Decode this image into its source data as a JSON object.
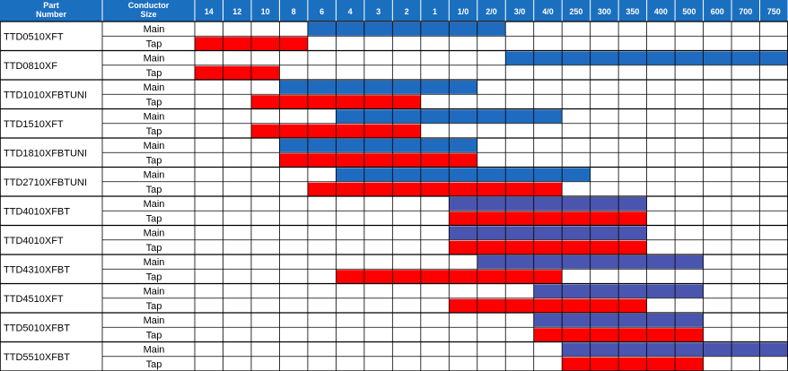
{
  "chart_data": {
    "type": "bar",
    "title": "",
    "header": {
      "part_label": "Part\nNumber",
      "size_label": "Conductor\nSize"
    },
    "sizes": [
      "14",
      "12",
      "10",
      "8",
      "6",
      "4",
      "3",
      "2",
      "1",
      "1/0",
      "2/0",
      "3/0",
      "4/0",
      "250",
      "300",
      "350",
      "400",
      "500",
      "600",
      "700",
      "750"
    ],
    "colors": {
      "header_bg": "#1b6fbf",
      "main": "#1f6bbf",
      "main_purple": "#4a55b0",
      "tap": "#ff0000",
      "grid": "#000000"
    },
    "parts": [
      {
        "part": "TTD0510XFT",
        "main": [
          "6",
          "2/0"
        ],
        "tap": [
          "14",
          "8"
        ]
      },
      {
        "part": "TTD0810XF",
        "main": [
          "3/0",
          "750"
        ],
        "tap": [
          "14",
          "10"
        ]
      },
      {
        "part": "TTD1010XFBTUNI",
        "main": [
          "8",
          "1/0"
        ],
        "tap": [
          "10",
          "2"
        ]
      },
      {
        "part": "TTD1510XFT",
        "main": [
          "4",
          "4/0"
        ],
        "tap": [
          "10",
          "2"
        ]
      },
      {
        "part": "TTD1810XFBTUNI",
        "main": [
          "8",
          "1/0"
        ],
        "tap": [
          "8",
          "1/0"
        ]
      },
      {
        "part": "TTD2710XFBTUNI",
        "main": [
          "4",
          "250"
        ],
        "tap": [
          "6",
          "4/0"
        ]
      },
      {
        "part": "TTD4010XFBT",
        "main": [
          "1/0",
          "350"
        ],
        "tap": [
          "1/0",
          "350"
        ]
      },
      {
        "part": "TTD4010XFT",
        "main": [
          "1/0",
          "350"
        ],
        "tap": [
          "1/0",
          "350"
        ]
      },
      {
        "part": "TTD4310XFBT",
        "main": [
          "2/0",
          "500"
        ],
        "tap": [
          "4",
          "4/0"
        ]
      },
      {
        "part": "TTD4510XFT",
        "main": [
          "4/0",
          "500"
        ],
        "tap": [
          "1/0",
          "350"
        ]
      },
      {
        "part": "TTD5010XFBT",
        "main": [
          "4/0",
          "500"
        ],
        "tap": [
          "4/0",
          "500"
        ]
      },
      {
        "part": "TTD5510XFBT",
        "main": [
          "250",
          "750"
        ],
        "tap": [
          "250",
          "500"
        ]
      }
    ],
    "row_labels": {
      "main": "Main",
      "tap": "Tap"
    }
  }
}
